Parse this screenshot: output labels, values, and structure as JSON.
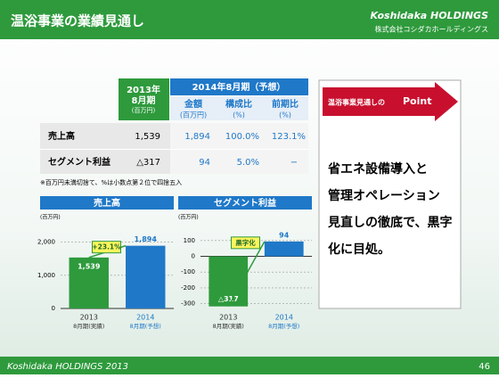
{
  "header": {
    "title": "温浴事業の業績見通し",
    "logo": "Koshidaka HOLDINGS",
    "company": "株式会社コシダカホールディングス"
  },
  "table": {
    "col_2013": [
      "2013年",
      "8月期",
      "(百万円)"
    ],
    "group_2014": "2014年8月期（予想）",
    "subheaders": [
      [
        "金額",
        "(百万円)"
      ],
      [
        "構成比",
        "(%)"
      ],
      [
        "前期比",
        "(%)"
      ]
    ],
    "rows": [
      [
        "売上高",
        "1,539",
        "1,894",
        "100.0%",
        "123.1%"
      ],
      [
        "セグメント利益",
        "△317",
        "94",
        "5.0%",
        "−"
      ]
    ],
    "note": "※百万円未満切捨て、%は小数点第２位で四捨五入"
  },
  "chart_data": [
    {
      "type": "bar",
      "title": "売上高",
      "unit": "(百万円)",
      "categories": [
        "2013",
        "2014"
      ],
      "sublabels": [
        "8月期(実績)",
        "8月期(予想)"
      ],
      "values": [
        1539,
        1894
      ],
      "value_labels": [
        "1,539",
        "1,894"
      ],
      "colors": [
        "#2e9a3c",
        "#1f78c8"
      ],
      "ylim": [
        0,
        2100
      ],
      "yticks": [
        0,
        {
          "value": 1000,
          "label": "1,000"
        },
        {
          "value": 2000,
          "label": "2,000"
        }
      ],
      "annotation": "+23.1%"
    },
    {
      "type": "bar",
      "title": "セグメント利益",
      "unit": "(百万円)",
      "categories": [
        "2013",
        "2014"
      ],
      "sublabels": [
        "8月期(実績)",
        "8月期(予想)"
      ],
      "values": [
        -317,
        94
      ],
      "value_labels": [
        "△317",
        "94"
      ],
      "colors": [
        "#2e9a3c",
        "#1f78c8"
      ],
      "ylim": [
        -330,
        110
      ],
      "yticks": [
        -300,
        -200,
        -100,
        0,
        100
      ],
      "annotation": "黒字化"
    }
  ],
  "point": {
    "banner": "温浴事業見通しの",
    "banner_emph": "Point",
    "lines": [
      "省エネ設備導入と",
      "管理オペレーション",
      "見直しの徹底で、黒字",
      "化に目処。"
    ]
  },
  "footer": {
    "brand": "Koshidaka HOLDINGS 2013",
    "page": "46"
  }
}
